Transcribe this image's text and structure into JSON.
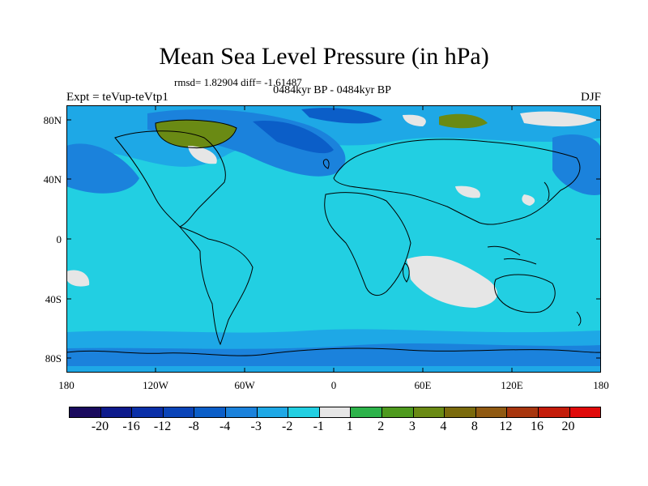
{
  "title": "Mean Sea Level Pressure (in hPa)",
  "stat_line": "rmsd= 1.82904 diff= -1.61487",
  "period_line": "0484kyr BP - 0484kyr BP",
  "expt_label": "Expt = teVup-teVtp1",
  "season": "DJF",
  "lat_labels": [
    "80N",
    "40N",
    "0",
    "40S",
    "80S"
  ],
  "lon_labels": [
    "180",
    "120W",
    "60W",
    "0",
    "60E",
    "120E",
    "180"
  ],
  "colorbar": {
    "colors": [
      "#1a0a5e",
      "#0d1a8c",
      "#0a2fa8",
      "#0a44b8",
      "#0b5ec8",
      "#1b82dc",
      "#1ea8e6",
      "#22cfe2",
      "#e6e6e6",
      "#2db34a",
      "#4e9a1e",
      "#6a8a14",
      "#7a6a0c",
      "#905a12",
      "#a8360e",
      "#c41c0a",
      "#e00a0a"
    ],
    "labels": [
      "-20",
      "-16",
      "-12",
      "-8",
      "-4",
      "-3",
      "-2",
      "-1",
      "1",
      "2",
      "3",
      "4",
      "8",
      "12",
      "16",
      "20"
    ]
  }
}
